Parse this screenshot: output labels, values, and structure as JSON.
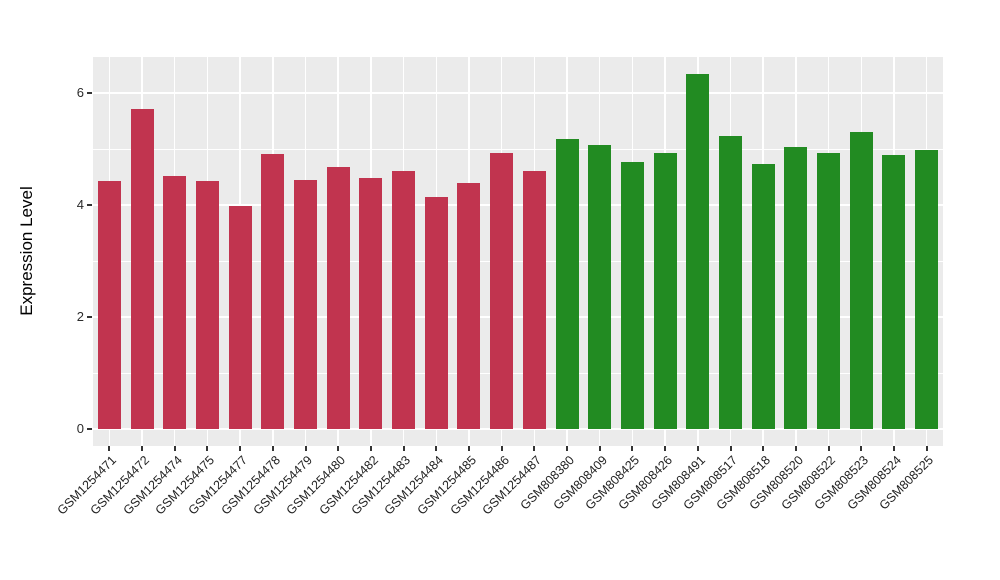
{
  "chart_data": {
    "type": "bar",
    "title": "",
    "xlabel": "",
    "ylabel": "Expression Level",
    "ylim": [
      0,
      6.64
    ],
    "yticks_major": [
      0,
      2,
      4,
      6
    ],
    "yticks_minor": [
      1,
      3,
      5
    ],
    "grid": true,
    "legend": false,
    "panel_background": "#EBEBEB",
    "gridline_color": "#FFFFFF",
    "accent_colors": {
      "red": "#C1344F",
      "green": "#228B22"
    },
    "categories": [
      "GSM1254471",
      "GSM1254472",
      "GSM1254474",
      "GSM1254475",
      "GSM1254477",
      "GSM1254478",
      "GSM1254479",
      "GSM1254480",
      "GSM1254482",
      "GSM1254483",
      "GSM1254484",
      "GSM1254485",
      "GSM1254486",
      "GSM1254487",
      "GSM808380",
      "GSM808409",
      "GSM808425",
      "GSM808426",
      "GSM808491",
      "GSM808517",
      "GSM808518",
      "GSM808520",
      "GSM808522",
      "GSM808523",
      "GSM808524",
      "GSM808525"
    ],
    "values": [
      4.42,
      5.71,
      4.52,
      4.43,
      3.99,
      4.91,
      4.44,
      4.68,
      4.49,
      4.61,
      4.15,
      4.39,
      4.93,
      4.6,
      5.17,
      5.08,
      4.76,
      4.93,
      6.34,
      5.23,
      4.74,
      5.04,
      4.92,
      5.31,
      4.9,
      4.99
    ],
    "bar_colors": [
      "#C1344F",
      "#C1344F",
      "#C1344F",
      "#C1344F",
      "#C1344F",
      "#C1344F",
      "#C1344F",
      "#C1344F",
      "#C1344F",
      "#C1344F",
      "#C1344F",
      "#C1344F",
      "#C1344F",
      "#C1344F",
      "#228B22",
      "#228B22",
      "#228B22",
      "#228B22",
      "#228B22",
      "#228B22",
      "#228B22",
      "#228B22",
      "#228B22",
      "#228B22",
      "#228B22",
      "#228B22"
    ]
  }
}
